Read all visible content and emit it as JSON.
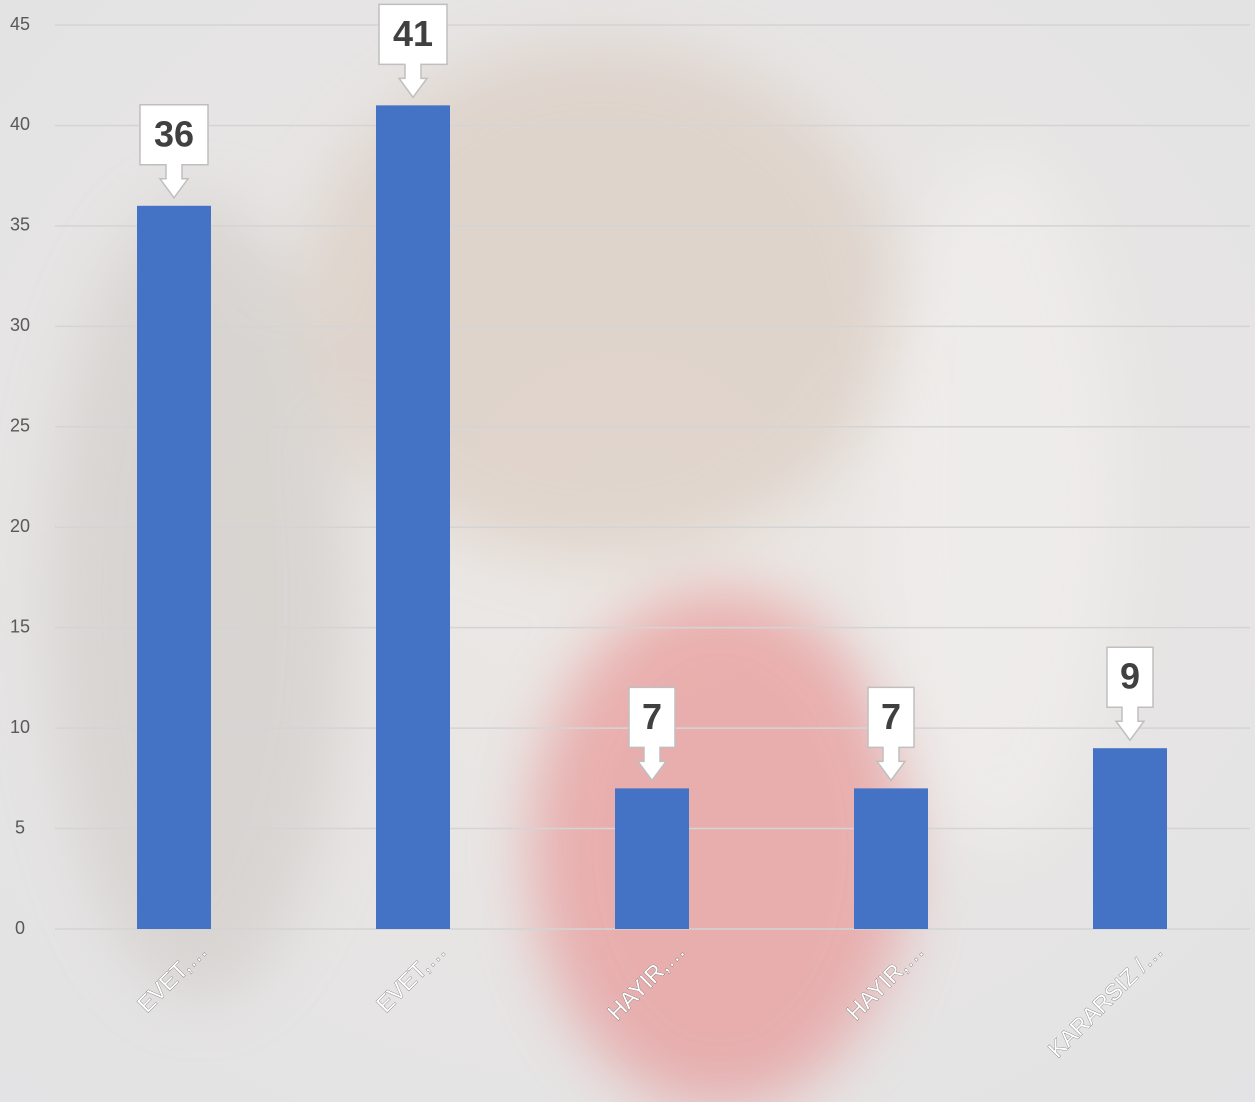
{
  "chart_data": {
    "type": "bar",
    "categories": [
      "EVET,…",
      "EVET,…",
      "HAYIR,…",
      "HAYIR,…",
      "KARARSIZ /…"
    ],
    "values": [
      36,
      41,
      7,
      7,
      9
    ],
    "color": "#4472c4",
    "ylim": [
      0,
      45
    ],
    "yticks": [
      0,
      5,
      10,
      15,
      20,
      25,
      30,
      35,
      40,
      45
    ],
    "grid": true
  }
}
